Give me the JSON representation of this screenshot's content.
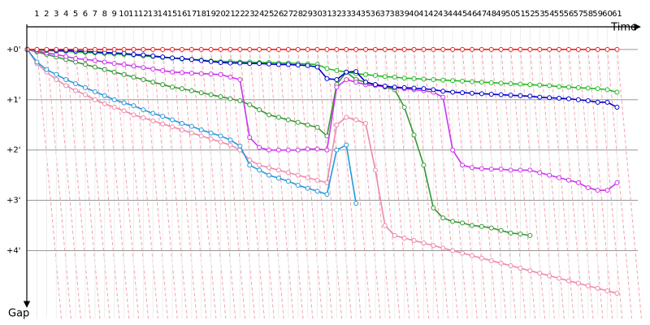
{
  "chart_data": {
    "type": "line",
    "x_axis_label": "Time",
    "y_axis_label": "Gap",
    "x": [
      0,
      1,
      2,
      3,
      4,
      5,
      6,
      7,
      8,
      9,
      10,
      11,
      12,
      13,
      14,
      15,
      16,
      17,
      18,
      19,
      20,
      21,
      22,
      23,
      24,
      25,
      26,
      27,
      28,
      29,
      30,
      31,
      32,
      33,
      34,
      35,
      36,
      37,
      38,
      39,
      40,
      41,
      42,
      43,
      44,
      45,
      46,
      47,
      48,
      49,
      50,
      51,
      52,
      53,
      54,
      55,
      56,
      57,
      58,
      59,
      60,
      61
    ],
    "xlim": [
      -0.3,
      63.4
    ],
    "xticks": [
      1,
      2,
      3,
      4,
      5,
      6,
      7,
      8,
      9,
      10,
      11,
      12,
      13,
      14,
      15,
      16,
      17,
      18,
      19,
      20,
      21,
      22,
      23,
      24,
      25,
      26,
      27,
      28,
      29,
      30,
      31,
      32,
      33,
      34,
      35,
      36,
      37,
      38,
      39,
      40,
      41,
      42,
      43,
      44,
      45,
      46,
      47,
      48,
      49,
      50,
      51,
      52,
      53,
      54,
      55,
      56,
      57,
      58,
      59,
      60,
      61
    ],
    "ylim": [
      -0.45,
      5.35
    ],
    "yticks": [
      {
        "value": 0,
        "label": "+0'"
      },
      {
        "value": 1,
        "label": "+1'"
      },
      {
        "value": 2,
        "label": "+2'"
      },
      {
        "value": 3,
        "label": "+3'"
      },
      {
        "value": 4,
        "label": "+4'"
      }
    ],
    "grid": true,
    "series": [
      {
        "color": "#ee88aa",
        "values": [
          0,
          0.28,
          0.45,
          0.6,
          0.72,
          0.82,
          0.9,
          1.0,
          1.08,
          1.15,
          1.22,
          1.3,
          1.36,
          1.42,
          1.48,
          1.54,
          1.6,
          1.66,
          1.72,
          1.78,
          1.84,
          1.9,
          2.0,
          2.2,
          2.3,
          2.35,
          2.4,
          2.45,
          2.5,
          2.55,
          2.6,
          2.65,
          1.5,
          1.35,
          1.4,
          1.47,
          2.4,
          3.5,
          3.7,
          3.75,
          3.8,
          3.85,
          3.9,
          3.95,
          4.0,
          4.05,
          4.1,
          4.15,
          4.2,
          4.25,
          4.3,
          4.35,
          4.4,
          4.45,
          4.5,
          4.55,
          4.6,
          4.65,
          4.7,
          4.75,
          4.8,
          4.85
        ]
      },
      {
        "color": "#2299dd",
        "values": [
          0,
          0.25,
          0.4,
          0.5,
          0.6,
          0.68,
          0.76,
          0.84,
          0.92,
          1.0,
          1.06,
          1.12,
          1.2,
          1.27,
          1.33,
          1.4,
          1.47,
          1.53,
          1.6,
          1.66,
          1.72,
          1.8,
          1.92,
          2.3,
          2.4,
          2.5,
          2.56,
          2.62,
          2.7,
          2.76,
          2.82,
          2.88,
          2.0,
          1.9,
          3.06,
          null,
          null,
          null,
          null,
          null,
          null,
          null,
          null,
          null,
          null,
          null,
          null,
          null,
          null,
          null,
          null,
          null,
          null,
          null,
          null,
          null,
          null,
          null,
          null,
          null,
          null,
          null
        ]
      },
      {
        "color": "#339933",
        "values": [
          0,
          0.05,
          0.1,
          0.15,
          0.2,
          0.25,
          0.3,
          0.35,
          0.4,
          0.45,
          0.5,
          0.55,
          0.6,
          0.65,
          0.7,
          0.75,
          0.78,
          0.82,
          0.86,
          0.9,
          0.94,
          0.98,
          1.02,
          1.1,
          1.2,
          1.3,
          1.35,
          1.4,
          1.45,
          1.5,
          1.55,
          1.72,
          0.7,
          0.45,
          0.6,
          0.65,
          0.7,
          0.75,
          0.8,
          1.15,
          1.7,
          2.3,
          3.15,
          3.35,
          3.42,
          3.45,
          3.5,
          3.52,
          3.55,
          3.6,
          3.65,
          3.67,
          3.7,
          null,
          null,
          null,
          null,
          null,
          null,
          null,
          null,
          null
        ]
      },
      {
        "color": "#cc33ee",
        "values": [
          0,
          0.03,
          0.07,
          0.1,
          0.14,
          0.18,
          0.2,
          0.22,
          0.25,
          0.28,
          0.3,
          0.33,
          0.36,
          0.39,
          0.42,
          0.45,
          0.46,
          0.47,
          0.48,
          0.49,
          0.5,
          0.55,
          0.6,
          1.75,
          1.95,
          2.0,
          2.0,
          2.0,
          2.0,
          1.98,
          1.98,
          2.0,
          0.75,
          0.6,
          0.65,
          0.7,
          0.72,
          0.74,
          0.76,
          0.78,
          0.8,
          0.82,
          0.85,
          0.95,
          2.0,
          2.3,
          2.35,
          2.37,
          2.38,
          2.38,
          2.4,
          2.4,
          2.4,
          2.45,
          2.5,
          2.55,
          2.6,
          2.65,
          2.75,
          2.8,
          2.8,
          2.65
        ]
      },
      {
        "color": "#22bb22",
        "values": [
          0,
          0.01,
          0.02,
          0.03,
          0.04,
          0.05,
          0.06,
          0.07,
          0.08,
          0.09,
          0.1,
          0.11,
          0.13,
          0.14,
          0.16,
          0.17,
          0.19,
          0.2,
          0.21,
          0.23,
          0.24,
          0.24,
          0.25,
          0.25,
          0.26,
          0.26,
          0.27,
          0.27,
          0.28,
          0.29,
          0.3,
          0.38,
          0.42,
          0.45,
          0.48,
          0.5,
          0.52,
          0.54,
          0.55,
          0.57,
          0.58,
          0.59,
          0.6,
          0.61,
          0.62,
          0.63,
          0.64,
          0.65,
          0.66,
          0.67,
          0.68,
          0.69,
          0.7,
          0.71,
          0.72,
          0.74,
          0.75,
          0.76,
          0.77,
          0.78,
          0.8,
          0.85
        ]
      },
      {
        "color": "#0000cc",
        "values": [
          0,
          0,
          0.01,
          0.02,
          0.02,
          0.03,
          0.04,
          0.05,
          0.06,
          0.07,
          0.08,
          0.1,
          0.11,
          0.13,
          0.15,
          0.17,
          0.18,
          0.2,
          0.22,
          0.24,
          0.26,
          0.27,
          0.27,
          0.28,
          0.28,
          0.29,
          0.3,
          0.3,
          0.31,
          0.32,
          0.35,
          0.58,
          0.6,
          0.45,
          0.44,
          0.65,
          0.7,
          0.73,
          0.75,
          0.76,
          0.77,
          0.78,
          0.8,
          0.83,
          0.85,
          0.86,
          0.87,
          0.88,
          0.89,
          0.9,
          0.91,
          0.92,
          0.93,
          0.95,
          0.96,
          0.97,
          0.98,
          1.0,
          1.02,
          1.05,
          1.05,
          1.15
        ]
      },
      {
        "color": "#ee2222",
        "values": [
          0,
          0,
          0,
          0,
          0,
          0,
          0,
          0,
          0,
          0,
          0,
          0,
          0,
          0,
          0,
          0,
          0,
          0,
          0,
          0,
          0,
          0,
          0,
          0,
          0,
          0,
          0,
          0,
          0,
          0,
          0,
          0,
          0,
          0,
          0,
          0,
          0,
          0,
          0,
          0,
          0,
          0,
          0,
          0,
          0,
          0,
          0,
          0,
          0,
          0,
          0,
          0,
          0,
          0,
          0,
          0,
          0,
          0,
          0,
          0,
          0,
          0
        ]
      }
    ]
  }
}
